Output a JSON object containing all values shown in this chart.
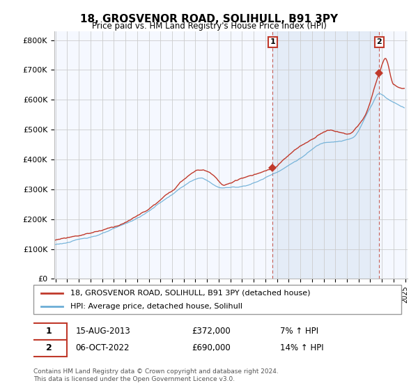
{
  "title": "18, GROSVENOR ROAD, SOLIHULL, B91 3PY",
  "subtitle": "Price paid vs. HM Land Registry's House Price Index (HPI)",
  "ylabel_ticks": [
    "£0",
    "£100K",
    "£200K",
    "£300K",
    "£400K",
    "£500K",
    "£600K",
    "£700K",
    "£800K"
  ],
  "ytick_values": [
    0,
    100000,
    200000,
    300000,
    400000,
    500000,
    600000,
    700000,
    800000
  ],
  "ylim": [
    0,
    830000
  ],
  "xlim_start": 1995.0,
  "xlim_end": 2025.2,
  "hpi_color": "#6baed6",
  "price_color": "#c0392b",
  "shade_color": "#ddeeff",
  "marker1_date": 2013.62,
  "marker1_price": 372000,
  "marker2_date": 2022.76,
  "marker2_price": 690000,
  "legend_label1": "18, GROSVENOR ROAD, SOLIHULL, B91 3PY (detached house)",
  "legend_label2": "HPI: Average price, detached house, Solihull",
  "table_row1": [
    "1",
    "15-AUG-2013",
    "£372,000",
    "7% ↑ HPI"
  ],
  "table_row2": [
    "2",
    "06-OCT-2022",
    "£690,000",
    "14% ↑ HPI"
  ],
  "footnote": "Contains HM Land Registry data © Crown copyright and database right 2024.\nThis data is licensed under the Open Government Licence v3.0.",
  "bg_color": "#ffffff",
  "grid_color": "#cccccc",
  "plot_bg": "#f0f4ff"
}
